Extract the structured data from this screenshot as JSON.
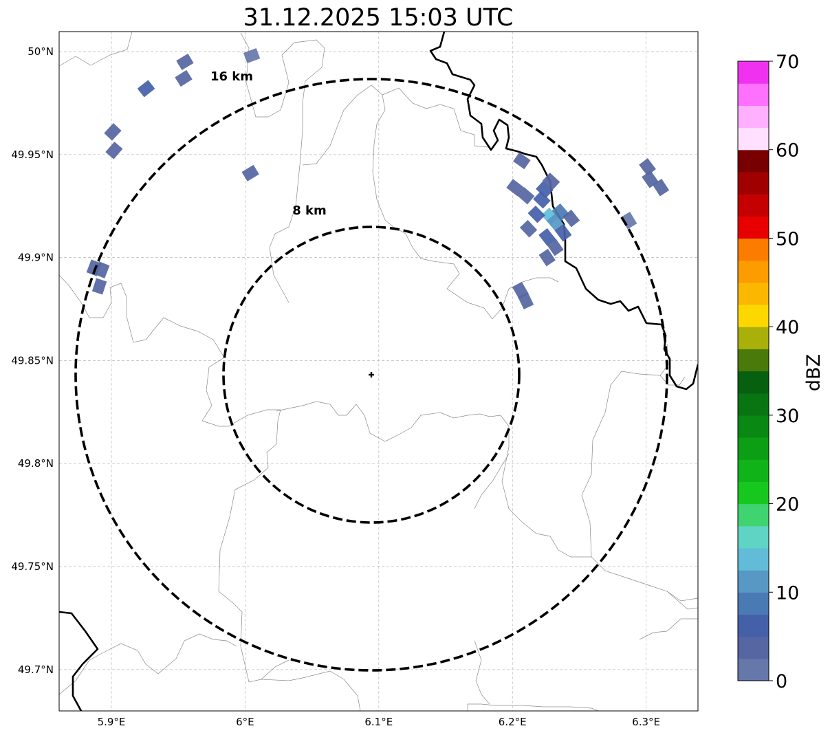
{
  "title": "31.12.2025 15:03 UTC",
  "map": {
    "lon_ticks": [
      {
        "value": 5.9,
        "label": "5.9°E"
      },
      {
        "value": 6.0,
        "label": "6°E"
      },
      {
        "value": 6.1,
        "label": "6.1°E"
      },
      {
        "value": 6.2,
        "label": "6.2°E"
      },
      {
        "value": 6.3,
        "label": "6.3°E"
      }
    ],
    "lat_ticks": [
      {
        "value": 50.0,
        "label": "50°N"
      },
      {
        "value": 49.95,
        "label": "49.95°N"
      },
      {
        "value": 49.9,
        "label": "49.9°N"
      },
      {
        "value": 49.85,
        "label": "49.85°N"
      },
      {
        "value": 49.8,
        "label": "49.8°N"
      },
      {
        "value": 49.75,
        "label": "49.75°N"
      },
      {
        "value": 49.7,
        "label": "49.7°N"
      }
    ],
    "lon_range": [
      5.86,
      6.34
    ],
    "lat_range": [
      49.68,
      50.01
    ],
    "grid": true,
    "center": {
      "lon": 6.095,
      "lat": 49.843
    },
    "rings": [
      {
        "radius_km": 8,
        "label": "8 km"
      },
      {
        "radius_km": 16,
        "label": "16 km"
      }
    ]
  },
  "colorbar": {
    "label": "dBZ",
    "min": 0,
    "max": 70,
    "ticks": [
      "0",
      "10",
      "20",
      "30",
      "40",
      "50",
      "60",
      "70"
    ],
    "colors": [
      "#6677aa",
      "#5566a2",
      "#4460a8",
      "#4a7ab4",
      "#5898c4",
      "#62bcd8",
      "#60d4c4",
      "#40d470",
      "#16c81e",
      "#10b418",
      "#0c9e14",
      "#0a8814",
      "#087412",
      "#066010",
      "#4a7a0a",
      "#aab00a",
      "#fcd800",
      "#fcb800",
      "#fc9c00",
      "#fc7c00",
      "#e80000",
      "#c40000",
      "#a00000",
      "#780000",
      "#ffe0ff",
      "#ffb0ff",
      "#ff70ff",
      "#f032f0"
    ]
  },
  "echoes": [
    {
      "lon": 6.228,
      "lat": 49.92,
      "dbz": 14
    },
    {
      "lon": 6.232,
      "lat": 49.917,
      "dbz": 12
    },
    {
      "lon": 6.236,
      "lat": 49.922,
      "dbz": 9
    },
    {
      "lon": 6.222,
      "lat": 49.928,
      "dbz": 6
    },
    {
      "lon": 6.218,
      "lat": 49.921,
      "dbz": 5
    },
    {
      "lon": 6.238,
      "lat": 49.912,
      "dbz": 6
    },
    {
      "lon": 6.226,
      "lat": 49.91,
      "dbz": 5
    },
    {
      "lon": 6.232,
      "lat": 49.905,
      "dbz": 4
    },
    {
      "lon": 6.224,
      "lat": 49.933,
      "dbz": 5
    },
    {
      "lon": 6.244,
      "lat": 49.919,
      "dbz": 4
    },
    {
      "lon": 6.226,
      "lat": 49.9,
      "dbz": 3
    },
    {
      "lon": 6.212,
      "lat": 49.914,
      "dbz": 3
    },
    {
      "lon": 6.229,
      "lat": 49.937,
      "dbz": 4
    },
    {
      "lon": 6.21,
      "lat": 49.93,
      "dbz": 4
    },
    {
      "lon": 6.206,
      "lat": 49.884,
      "dbz": 4
    },
    {
      "lon": 6.21,
      "lat": 49.879,
      "dbz": 3
    },
    {
      "lon": 6.207,
      "lat": 49.947,
      "dbz": 3
    },
    {
      "lon": 6.202,
      "lat": 49.934,
      "dbz": 3
    },
    {
      "lon": 6.287,
      "lat": 49.918,
      "dbz": 2
    },
    {
      "lon": 6.301,
      "lat": 49.944,
      "dbz": 3
    },
    {
      "lon": 6.303,
      "lat": 49.938,
      "dbz": 3
    },
    {
      "lon": 6.311,
      "lat": 49.934,
      "dbz": 3
    },
    {
      "lon": 6.004,
      "lat": 49.941,
      "dbz": 4
    },
    {
      "lon": 5.887,
      "lat": 49.895,
      "dbz": 4
    },
    {
      "lon": 5.893,
      "lat": 49.894,
      "dbz": 3
    },
    {
      "lon": 5.891,
      "lat": 49.886,
      "dbz": 3
    },
    {
      "lon": 5.901,
      "lat": 49.961,
      "dbz": 4
    },
    {
      "lon": 5.902,
      "lat": 49.952,
      "dbz": 3
    },
    {
      "lon": 5.926,
      "lat": 49.982,
      "dbz": 5
    },
    {
      "lon": 5.955,
      "lat": 49.995,
      "dbz": 3
    },
    {
      "lon": 5.954,
      "lat": 49.987,
      "dbz": 3
    },
    {
      "lon": 6.005,
      "lat": 49.998,
      "dbz": 2
    }
  ]
}
